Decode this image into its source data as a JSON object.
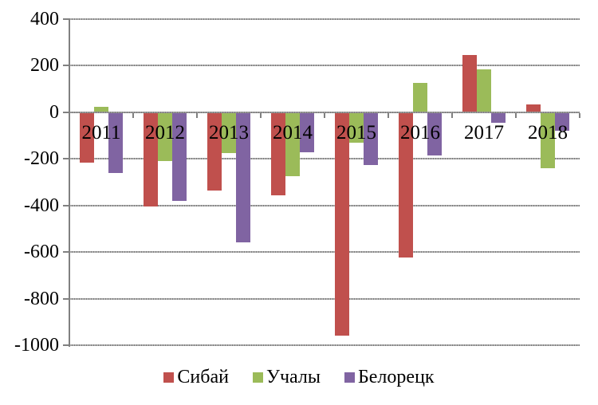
{
  "chart_data": {
    "type": "bar",
    "title": "",
    "xlabel": "",
    "ylabel": "",
    "categories": [
      "2011",
      "2012",
      "2013",
      "2014",
      "2015",
      "2016",
      "2017",
      "2018"
    ],
    "series": [
      {
        "name": "Сибай",
        "color": "#C0504D",
        "values": [
          -215,
          -405,
          -335,
          -355,
          -960,
          -625,
          245,
          35
        ]
      },
      {
        "name": "Учалы",
        "color": "#9BBB59",
        "values": [
          25,
          -210,
          -175,
          -275,
          -130,
          125,
          185,
          -240
        ]
      },
      {
        "name": "Белорецк",
        "color": "#8064A2",
        "values": [
          -260,
          -380,
          -560,
          -170,
          -225,
          -185,
          -45,
          -80
        ]
      }
    ],
    "ylim": [
      -1000,
      400
    ],
    "y_ticks": [
      400,
      200,
      0,
      -200,
      -400,
      -600,
      -800,
      -1000
    ],
    "grid": true,
    "legend_position": "bottom",
    "colors": {
      "gridline": "#9a9a9a",
      "axis": "#808080",
      "text": "#000000",
      "background": "#ffffff"
    }
  }
}
